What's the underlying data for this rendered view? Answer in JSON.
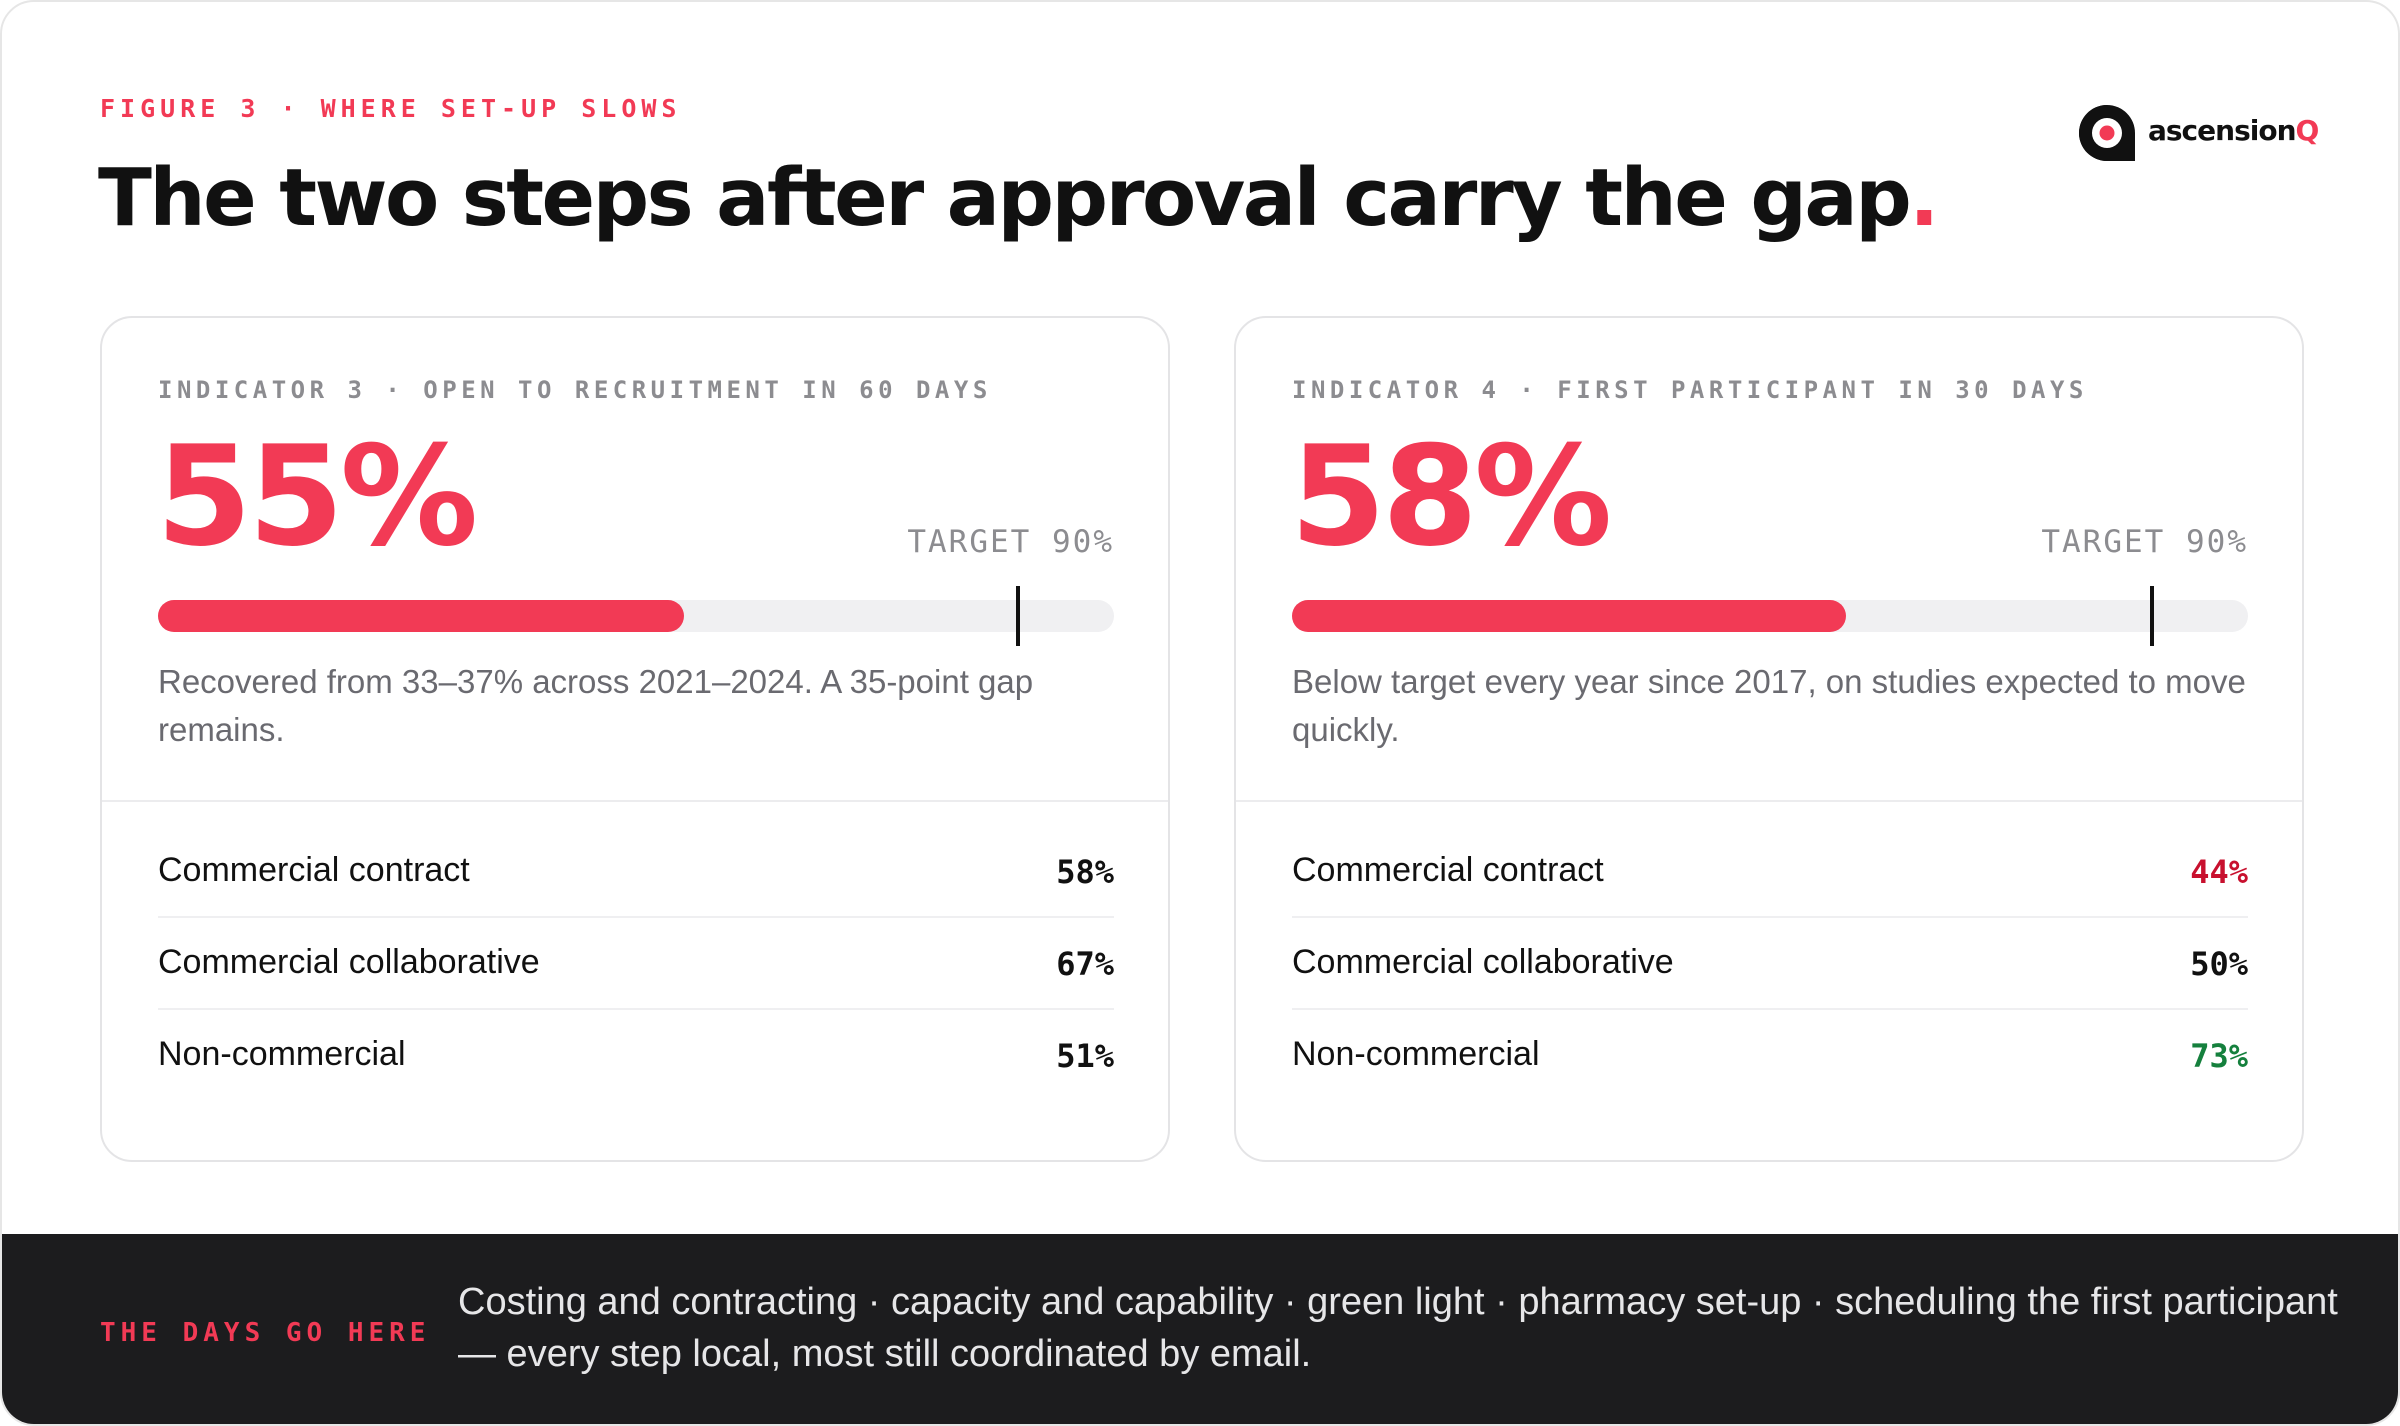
{
  "header": {
    "eyebrow": "FIGURE 3 · WHERE SET-UP SLOWS",
    "title": "The two steps after approval carry the gap",
    "title_dot": "."
  },
  "logo": {
    "name_main": "ascension",
    "name_accent": "Q",
    "icon": "ascensionq-logo-icon"
  },
  "colors": {
    "accent": "#f23a55",
    "text": "#111111",
    "muted": "#8c8c90",
    "negative": "#c8102e",
    "positive": "#15803d",
    "footer_bg": "#1c1c1e"
  },
  "chart_data": [
    {
      "type": "bar",
      "kicker": "INDICATOR 3 · OPEN TO RECRUITMENT IN 60 DAYS",
      "value": 55,
      "value_label": "55%",
      "target": 90,
      "target_label": "TARGET 90%",
      "range": [
        0,
        100
      ],
      "note": "Recovered from 33–37% across 2021–2024. A 35-point gap remains.",
      "breakdown": [
        {
          "label": "Commercial contract",
          "value": "58%",
          "tone": "neutral"
        },
        {
          "label": "Commercial collaborative",
          "value": "67%",
          "tone": "neutral"
        },
        {
          "label": "Non-commercial",
          "value": "51%",
          "tone": "neutral"
        }
      ]
    },
    {
      "type": "bar",
      "kicker": "INDICATOR 4 · FIRST PARTICIPANT IN 30 DAYS",
      "value": 58,
      "value_label": "58%",
      "target": 90,
      "target_label": "TARGET 90%",
      "range": [
        0,
        100
      ],
      "note": "Below target every year since 2017, on studies expected to move quickly.",
      "breakdown": [
        {
          "label": "Commercial contract",
          "value": "44%",
          "tone": "negative"
        },
        {
          "label": "Commercial collaborative",
          "value": "50%",
          "tone": "neutral"
        },
        {
          "label": "Non-commercial",
          "value": "73%",
          "tone": "positive"
        }
      ]
    }
  ],
  "footer": {
    "tag": "THE DAYS GO HERE",
    "text": "Costing and contracting · capacity and capability · green light · pharmacy set-up · scheduling the first participant — every step local, most still coordinated by email."
  }
}
